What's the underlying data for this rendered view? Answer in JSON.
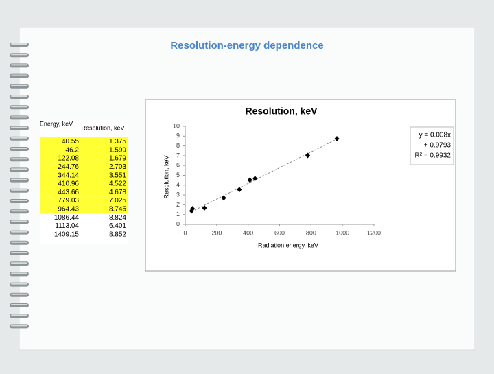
{
  "title": "Resolution-energy dependence",
  "table": {
    "header": [
      "Energy, keV",
      "Resolution, keV"
    ],
    "rows": [
      [
        "40.55",
        "1.375"
      ],
      [
        "46.2",
        "1.599"
      ],
      [
        "122.08",
        "1.679"
      ],
      [
        "244.76",
        "2.703"
      ],
      [
        "344.14",
        "3.551"
      ],
      [
        "410.96",
        "4.522"
      ],
      [
        "443.66",
        "4.678"
      ],
      [
        "779.03",
        "7.025"
      ],
      [
        "964.43",
        "8.745"
      ],
      [
        "1086.44",
        "8.824"
      ],
      [
        "1113.04",
        "6.401"
      ],
      [
        "1409.15",
        "8.852"
      ]
    ],
    "highlight_color": "#ffff33"
  },
  "chart_data": {
    "type": "scatter",
    "title": "Resolution, keV",
    "x_label": "Radiation energy, keV",
    "y_label": "Resolution, keV",
    "series": [
      {
        "name": "Resolution, keV",
        "color": "#000000",
        "x": [
          40.55,
          46.2,
          122.08,
          244.76,
          344.14,
          410.96,
          443.66,
          779.03,
          964.43
        ],
        "values": [
          1.375,
          1.599,
          1.679,
          2.703,
          3.551,
          4.522,
          4.678,
          7.025,
          8.745
        ]
      }
    ],
    "trendline": {
      "slope": 0.008,
      "intercept": 0.9793,
      "color": "#888888"
    },
    "annotation": [
      "y = 0.008x",
      "+ 0.9793",
      "R² = 0.9932"
    ],
    "xlim": [
      0,
      1200
    ],
    "xticks": [
      0,
      200,
      400,
      600,
      800,
      1000,
      1200
    ],
    "ylim": [
      0,
      10
    ],
    "yticks": [
      0,
      1,
      2,
      3,
      4,
      5,
      6,
      7,
      8,
      9,
      10
    ]
  }
}
